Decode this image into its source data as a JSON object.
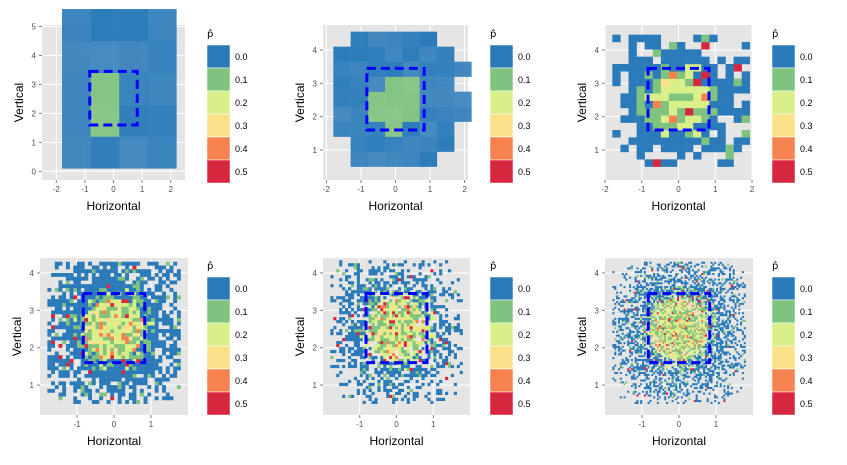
{
  "chart_data": {
    "type": "heatmap",
    "layout": "2 rows x 3 columns",
    "xlabel": "Horizontal",
    "ylabel": "Vertical",
    "legend_title": "p̂",
    "legend": {
      "labels": [
        "0.0",
        "0.1",
        "0.2",
        "0.3",
        "0.4",
        "0.5"
      ],
      "colors": [
        "#2b7bba",
        "#80c37e",
        "#d8ef8a",
        "#fde08a",
        "#f6824f",
        "#d7273f"
      ]
    },
    "strike_zone": {
      "x": [
        -0.83,
        0.83
      ],
      "y": [
        1.6,
        3.45
      ],
      "color": "#0000ff",
      "style": "dashed"
    },
    "panels": [
      {
        "id": "p1",
        "xlim": [
          -2.5,
          2.5
        ],
        "ylim": [
          -0.3,
          5.05
        ],
        "xticks": [
          "-2",
          "-1",
          "0",
          "1",
          "2"
        ],
        "xtickvals": [
          -2,
          -1,
          0,
          1,
          2
        ],
        "yticks": [
          "0",
          "1",
          "2",
          "3",
          "4",
          "5"
        ],
        "ytickvals": [
          0,
          1,
          2,
          3,
          4,
          5
        ],
        "bins": 5,
        "cell_w": 1.0,
        "cell_h": 1.1,
        "extent_x": [
          -1.8,
          1.8
        ],
        "extent_y": [
          0.1,
          4.6
        ],
        "density": "full"
      },
      {
        "id": "p2",
        "xlim": [
          -2.1,
          2.1
        ],
        "ylim": [
          0.1,
          4.75
        ],
        "xticks": [
          "-2",
          "-1",
          "0",
          "1",
          "2"
        ],
        "xtickvals": [
          -2,
          -1,
          0,
          1,
          2
        ],
        "yticks": [
          "1",
          "2",
          "3",
          "4"
        ],
        "ytickvals": [
          1,
          2,
          3,
          4
        ],
        "bins": 10,
        "cell_w": 0.5,
        "cell_h": 0.45,
        "extent_x": [
          -1.8,
          1.8
        ],
        "extent_y": [
          0.5,
          4.6
        ],
        "density": "dense"
      },
      {
        "id": "p3",
        "xlim": [
          -2.0,
          2.0
        ],
        "ylim": [
          0.1,
          4.75
        ],
        "xticks": [
          "-2",
          "-1",
          "0",
          "1",
          "2"
        ],
        "xtickvals": [
          -2,
          -1,
          0,
          1,
          2
        ],
        "yticks": [
          "1",
          "2",
          "3",
          "4"
        ],
        "ytickvals": [
          1,
          2,
          3,
          4
        ],
        "bins": 20,
        "cell_w": 0.22,
        "cell_h": 0.22,
        "extent_x": [
          -1.8,
          1.8
        ],
        "extent_y": [
          0.5,
          4.4
        ],
        "density": "medium"
      },
      {
        "id": "p4",
        "xlim": [
          -2.0,
          2.0
        ],
        "ylim": [
          0.2,
          4.4
        ],
        "xticks": [
          "-1",
          "0",
          "1"
        ],
        "xtickvals": [
          -1,
          0,
          1
        ],
        "yticks": [
          "1",
          "2",
          "3",
          "4"
        ],
        "ytickvals": [
          1,
          2,
          3,
          4
        ],
        "bins": 40,
        "cell_w": 0.1,
        "cell_h": 0.1,
        "extent_x": [
          -1.8,
          1.8
        ],
        "extent_y": [
          0.5,
          4.3
        ],
        "density": "medium"
      },
      {
        "id": "p5",
        "xlim": [
          -2.0,
          2.0
        ],
        "ylim": [
          0.2,
          4.4
        ],
        "xticks": [
          "-1",
          "0",
          "1"
        ],
        "xtickvals": [
          -1,
          0,
          1
        ],
        "yticks": [
          "1",
          "2",
          "3",
          "4"
        ],
        "ytickvals": [
          1,
          2,
          3,
          4
        ],
        "bins": 50,
        "cell_w": 0.08,
        "cell_h": 0.08,
        "extent_x": [
          -1.8,
          1.8
        ],
        "extent_y": [
          0.5,
          4.3
        ],
        "density": "sparse"
      },
      {
        "id": "p6",
        "xlim": [
          -2.0,
          2.0
        ],
        "ylim": [
          0.2,
          4.4
        ],
        "xticks": [
          "-1",
          "0",
          "1"
        ],
        "xtickvals": [
          -1,
          0,
          1
        ],
        "yticks": [
          "1",
          "2",
          "3",
          "4"
        ],
        "ytickvals": [
          1,
          2,
          3,
          4
        ],
        "bins": 80,
        "cell_w": 0.05,
        "cell_h": 0.05,
        "extent_x": [
          -1.8,
          1.8
        ],
        "extent_y": [
          0.5,
          4.3
        ],
        "density": "sparse"
      }
    ],
    "grid": true
  }
}
